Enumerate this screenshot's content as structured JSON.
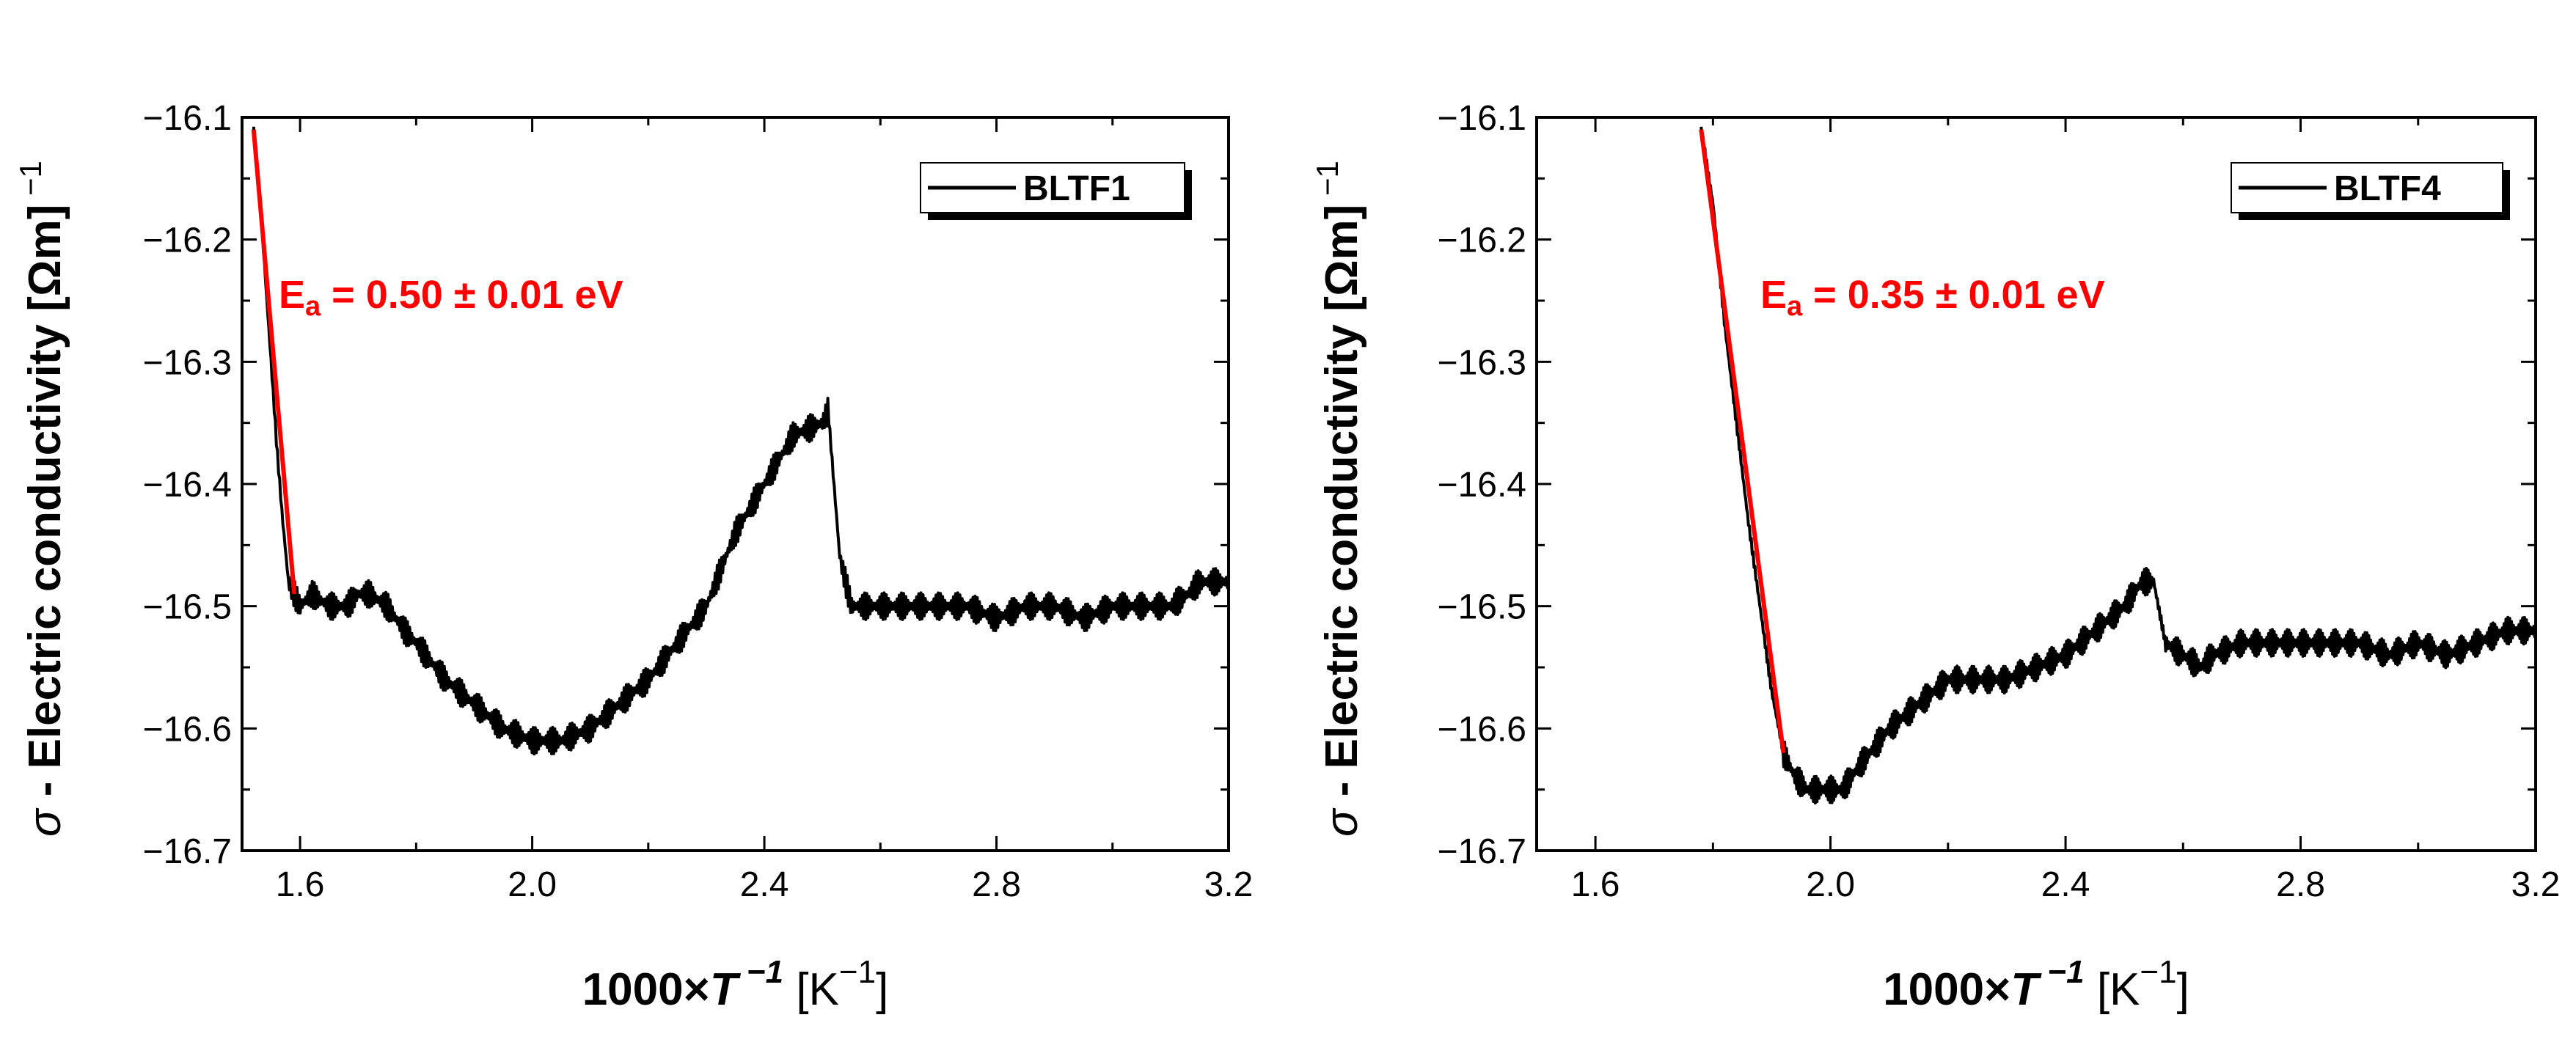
{
  "chart_data": [
    {
      "type": "line",
      "legend": "BLTF1",
      "legend_position": "top-right",
      "xlim": [
        1.5,
        3.2
      ],
      "ylim": [
        -16.7,
        -16.1
      ],
      "x_ticks": [
        1.6,
        2.0,
        2.4,
        2.8,
        3.2
      ],
      "x_tick_labels": [
        "1.6",
        "2.0",
        "2.4",
        "2.8",
        "3.2"
      ],
      "y_ticks": [
        -16.1,
        -16.2,
        -16.3,
        -16.4,
        -16.5,
        -16.6,
        -16.7
      ],
      "y_tick_labels": [
        "−16.1",
        "−16.2",
        "−16.3",
        "−16.4",
        "−16.5",
        "−16.6",
        "−16.7"
      ],
      "xlabel": {
        "main": "1000×",
        "var": "T",
        "exp": " −1",
        "unit": "  [K",
        "unit_exp": "−1",
        "close": "]"
      },
      "ylabel": {
        "sigma": "σ",
        "text": " - Electric conductivity [Ωm]",
        "exp": " −1"
      },
      "annotation": {
        "main": "E",
        "sub": "a",
        "rest": " = 0.50 ± 0.01 eV",
        "color": "#ff0000"
      },
      "series": [
        {
          "name": "BLTF1",
          "color": "#000000",
          "x": [
            1.52,
            1.53,
            1.54,
            1.55,
            1.56,
            1.57,
            1.58,
            1.6,
            1.62,
            1.65,
            1.68,
            1.7,
            1.72,
            1.75,
            1.78,
            1.8,
            1.85,
            1.9,
            1.95,
            2.0,
            2.05,
            2.1,
            2.15,
            2.2,
            2.25,
            2.3,
            2.35,
            2.4,
            2.45,
            2.5,
            2.51,
            2.52,
            2.53,
            2.55,
            2.58,
            2.6,
            2.65,
            2.7,
            2.75,
            2.8,
            2.85,
            2.9,
            2.95,
            3.0,
            3.05,
            3.1,
            3.13,
            3.15,
            3.2
          ],
          "y": [
            -16.11,
            -16.16,
            -16.23,
            -16.3,
            -16.37,
            -16.43,
            -16.48,
            -16.5,
            -16.49,
            -16.5,
            -16.5,
            -16.49,
            -16.49,
            -16.5,
            -16.52,
            -16.53,
            -16.56,
            -16.58,
            -16.6,
            -16.61,
            -16.61,
            -16.6,
            -16.58,
            -16.56,
            -16.53,
            -16.5,
            -16.44,
            -16.4,
            -16.36,
            -16.35,
            -16.34,
            -16.4,
            -16.46,
            -16.5,
            -16.5,
            -16.5,
            -16.5,
            -16.5,
            -16.5,
            -16.51,
            -16.5,
            -16.5,
            -16.51,
            -16.5,
            -16.5,
            -16.5,
            -16.49,
            -16.48,
            -16.48
          ],
          "noise": 0.011
        },
        {
          "name": "fit",
          "color": "#ff0000",
          "x": [
            1.52,
            1.59
          ],
          "y": [
            -16.11,
            -16.49
          ]
        }
      ]
    },
    {
      "type": "line",
      "legend": "BLTF4",
      "legend_position": "top-right",
      "xlim": [
        1.5,
        3.2
      ],
      "ylim": [
        -16.7,
        -16.1
      ],
      "x_ticks": [
        1.6,
        2.0,
        2.4,
        2.8,
        3.2
      ],
      "x_tick_labels": [
        "1.6",
        "2.0",
        "2.4",
        "2.8",
        "3.2"
      ],
      "y_ticks": [
        -16.1,
        -16.2,
        -16.3,
        -16.4,
        -16.5,
        -16.6,
        -16.7
      ],
      "y_tick_labels": [
        "−16.1",
        "−16.2",
        "−16.3",
        "−16.4",
        "−16.5",
        "−16.6",
        "−16.7"
      ],
      "xlabel": {
        "main": "1000×",
        "var": "T",
        "exp": " −1",
        "unit": "  [K",
        "unit_exp": "−1",
        "close": "]"
      },
      "ylabel": {
        "sigma": "σ",
        "text": " - Electric conductivity [Ωm]",
        "exp": " −1"
      },
      "annotation": {
        "main": "E",
        "sub": "a",
        "rest": " = 0.35 ± 0.01 eV",
        "color": "#ff0000"
      },
      "series": [
        {
          "name": "BLTF4",
          "color": "#000000",
          "x": [
            1.78,
            1.8,
            1.82,
            1.84,
            1.86,
            1.88,
            1.9,
            1.92,
            1.94,
            1.96,
            1.98,
            2.0,
            2.02,
            2.05,
            2.1,
            2.15,
            2.2,
            2.25,
            2.3,
            2.35,
            2.4,
            2.45,
            2.5,
            2.53,
            2.55,
            2.57,
            2.6,
            2.63,
            2.65,
            2.7,
            2.75,
            2.8,
            2.85,
            2.9,
            2.95,
            3.0,
            3.05,
            3.1,
            3.15,
            3.2
          ],
          "y": [
            -16.11,
            -16.17,
            -16.27,
            -16.35,
            -16.43,
            -16.5,
            -16.57,
            -16.62,
            -16.64,
            -16.65,
            -16.65,
            -16.65,
            -16.65,
            -16.63,
            -16.6,
            -16.58,
            -16.56,
            -16.56,
            -16.56,
            -16.55,
            -16.54,
            -16.52,
            -16.5,
            -16.48,
            -16.48,
            -16.53,
            -16.54,
            -16.55,
            -16.54,
            -16.53,
            -16.53,
            -16.53,
            -16.53,
            -16.53,
            -16.54,
            -16.53,
            -16.54,
            -16.53,
            -16.52,
            -16.52
          ],
          "noise": 0.011
        },
        {
          "name": "fit",
          "color": "#ff0000",
          "x": [
            1.78,
            1.92
          ],
          "y": [
            -16.11,
            -16.62
          ]
        }
      ]
    }
  ]
}
